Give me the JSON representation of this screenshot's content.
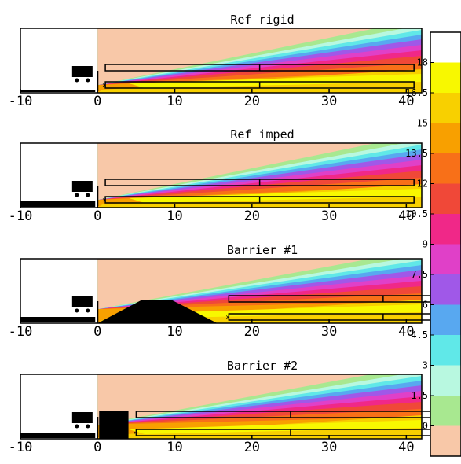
{
  "chart_data": {
    "type": "heatmap",
    "panels": [
      {
        "title": "Ref rigid",
        "ground": "rigid"
      },
      {
        "title": "Ref imped",
        "ground": "impedance"
      },
      {
        "title": "Barrier #1",
        "ground": "impedance",
        "barrier": "earth berm"
      },
      {
        "title": "Barrier #2",
        "ground": "impedance",
        "barrier": "wall"
      }
    ],
    "x_ticks": [
      "-10",
      "0",
      "10",
      "20",
      "30",
      "40"
    ],
    "xlim": [
      -10,
      42
    ],
    "colorbar": {
      "ticks": [
        "18",
        "16.5",
        "15",
        "13.5",
        "12",
        "10.5",
        "9",
        "7.5",
        "6",
        "4.5",
        "3",
        "1.5",
        "0"
      ],
      "range": [
        -1.5,
        19.5
      ],
      "colors": [
        "#f8c8a8",
        "#a8e890",
        "#b8f8e0",
        "#60e8e8",
        "#58a8f0",
        "#a058e8",
        "#e040c8",
        "#f02888",
        "#f04838",
        "#f87018",
        "#f8a000",
        "#f8d000",
        "#f8f800"
      ]
    }
  }
}
